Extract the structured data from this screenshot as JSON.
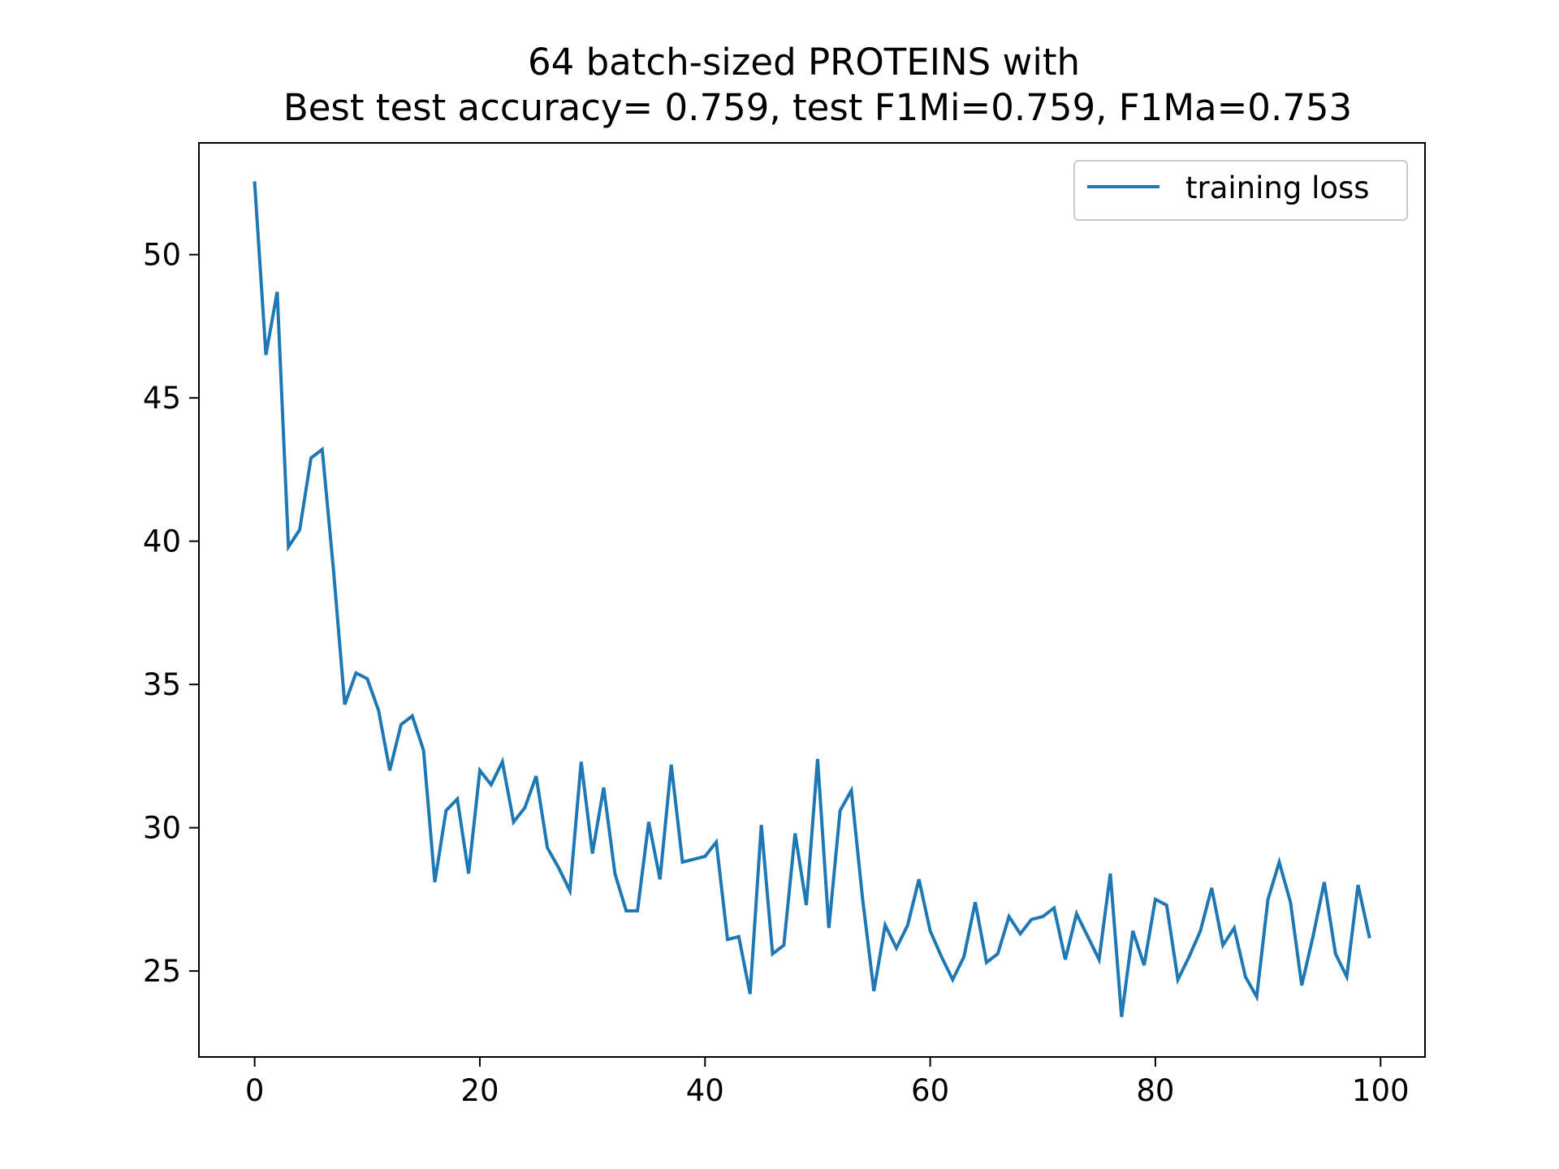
{
  "chart_data": {
    "type": "line",
    "title_line1": "64 batch-sized PROTEINS with",
    "title_line2": "Best test accuracy= 0.759, test F1Mi=0.759, F1Ma=0.753",
    "xlabel": "",
    "ylabel": "",
    "xlim": [
      -4.95,
      103.95
    ],
    "ylim": [
      22.0,
      53.9
    ],
    "x_ticks": [
      0,
      20,
      40,
      60,
      80,
      100
    ],
    "y_ticks": [
      25,
      30,
      35,
      40,
      45,
      50
    ],
    "grid": false,
    "legend_position": "top-right",
    "series": [
      {
        "name": "training loss",
        "color": "#1f77b4",
        "x": [
          0,
          1,
          2,
          3,
          4,
          5,
          6,
          7,
          8,
          9,
          10,
          11,
          12,
          13,
          14,
          15,
          16,
          17,
          18,
          19,
          20,
          21,
          22,
          23,
          24,
          25,
          26,
          27,
          28,
          29,
          30,
          31,
          32,
          33,
          34,
          35,
          36,
          37,
          38,
          39,
          40,
          41,
          42,
          43,
          44,
          45,
          46,
          47,
          48,
          49,
          50,
          51,
          52,
          53,
          54,
          55,
          56,
          57,
          58,
          59,
          60,
          61,
          62,
          63,
          64,
          65,
          66,
          67,
          68,
          69,
          70,
          71,
          72,
          73,
          74,
          75,
          76,
          77,
          78,
          79,
          80,
          81,
          82,
          83,
          84,
          85,
          86,
          87,
          88,
          89,
          90,
          91,
          92,
          93,
          94,
          95,
          96,
          97,
          98,
          99
        ],
        "values": [
          52.5,
          46.5,
          48.7,
          39.8,
          40.4,
          42.9,
          43.2,
          39.0,
          34.3,
          35.4,
          35.2,
          34.1,
          32.0,
          33.6,
          33.9,
          32.7,
          28.1,
          30.6,
          31.0,
          28.4,
          32.0,
          31.5,
          32.3,
          30.2,
          30.7,
          31.8,
          29.3,
          28.6,
          27.8,
          32.3,
          29.1,
          31.4,
          28.4,
          27.1,
          27.1,
          30.2,
          28.2,
          32.2,
          28.8,
          28.9,
          29.0,
          29.5,
          26.1,
          26.2,
          24.2,
          30.1,
          25.6,
          25.9,
          29.8,
          27.3,
          32.4,
          26.5,
          30.6,
          31.3,
          27.5,
          24.3,
          26.6,
          25.8,
          26.6,
          28.2,
          26.4,
          25.5,
          24.7,
          25.5,
          27.4,
          25.3,
          25.6,
          26.9,
          26.3,
          26.8,
          26.9,
          27.2,
          25.4,
          27.0,
          26.2,
          25.4,
          28.4,
          23.4,
          26.4,
          25.2,
          27.5,
          27.3,
          24.7,
          25.5,
          26.4,
          27.9,
          25.9,
          26.5,
          24.8,
          24.1,
          27.5,
          28.8,
          27.4,
          24.5,
          26.2,
          28.1,
          25.6,
          24.8,
          28.0,
          26.2
        ]
      }
    ]
  }
}
